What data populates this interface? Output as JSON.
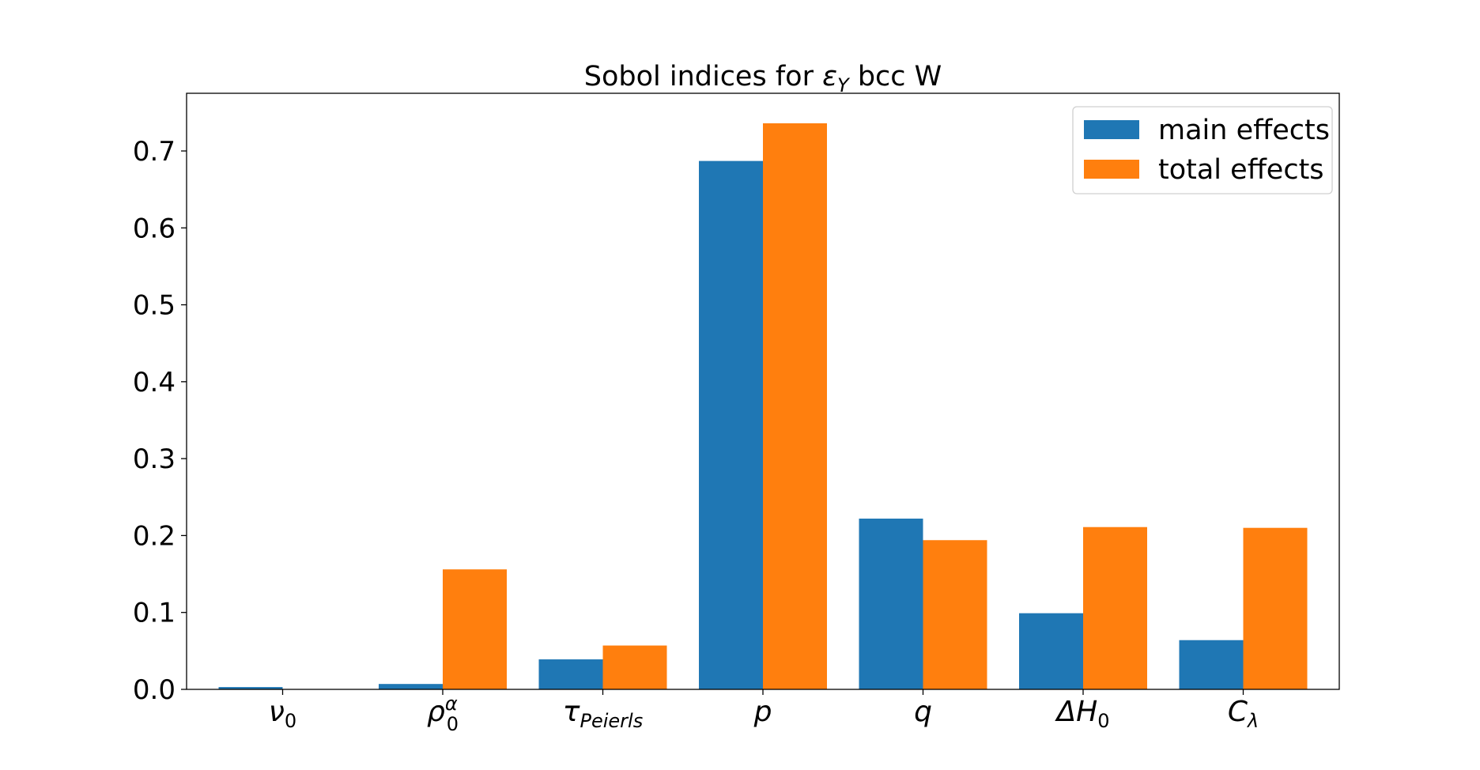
{
  "chart_data": {
    "type": "bar",
    "title": {
      "prefix": "Sobol indices for ",
      "symbol": "ε",
      "subscript": "Y",
      "suffix": " bcc W"
    },
    "categories": [
      {
        "base": "ν",
        "sub": "0",
        "sup": ""
      },
      {
        "base": "ρ",
        "sub": "0",
        "sup": "α"
      },
      {
        "base": "τ",
        "sub": "Peierls",
        "sup": ""
      },
      {
        "base": "p",
        "sub": "",
        "sup": ""
      },
      {
        "base": "q",
        "sub": "",
        "sup": ""
      },
      {
        "base": "ΔH",
        "sub": "0",
        "sup": ""
      },
      {
        "base": "C",
        "sub": "λ",
        "sup": ""
      }
    ],
    "series": [
      {
        "name": "main effects",
        "color": "#1f77b4",
        "values": [
          0.003,
          0.007,
          0.039,
          0.687,
          0.222,
          0.099,
          0.064
        ]
      },
      {
        "name": "total effects",
        "color": "#ff7f0e",
        "values": [
          0.0,
          0.156,
          0.057,
          0.736,
          0.194,
          0.211,
          0.21
        ]
      }
    ],
    "ylim": [
      0.0,
      0.775
    ],
    "yticks": [
      "0.0",
      "0.1",
      "0.2",
      "0.3",
      "0.4",
      "0.5",
      "0.6",
      "0.7"
    ],
    "grid": false,
    "legend_position": "top-right"
  }
}
